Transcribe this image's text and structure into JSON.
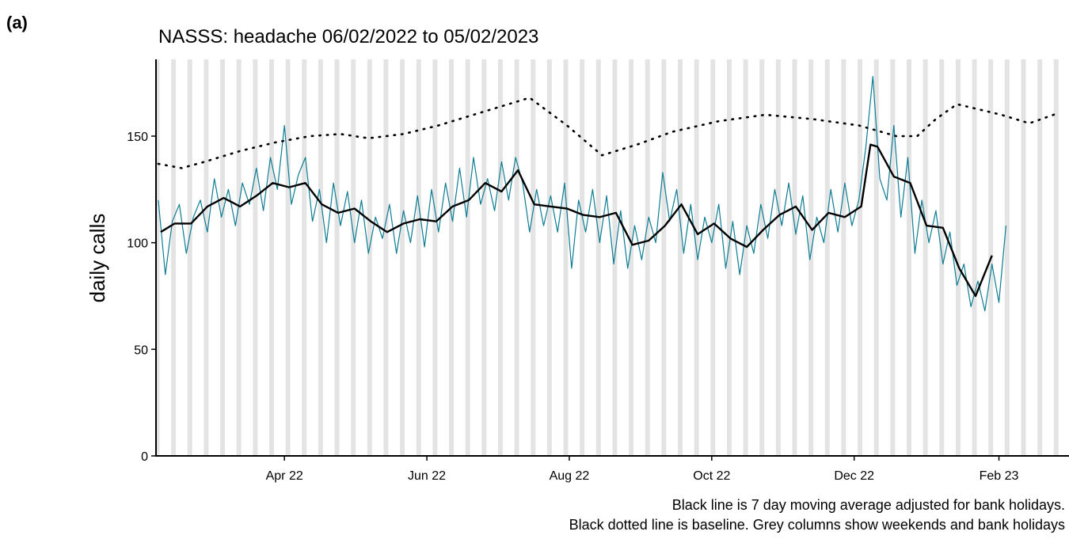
{
  "panel_label": "(a)",
  "chart_data": {
    "type": "line",
    "title": "NASSS: headache 06/02/2022 to 05/02/2023",
    "ylabel": "daily calls",
    "notes": [
      "Black line is 7 day moving average adjusted for bank holidays.",
      "Black dotted line is baseline. Grey columns show weekends and bank holidays"
    ],
    "xlim": [
      -1,
      390
    ],
    "ylim": [
      0,
      186
    ],
    "yticks": [
      0,
      50,
      100,
      150
    ],
    "xticks": [
      {
        "value": 54,
        "label": "Apr 22"
      },
      {
        "value": 115,
        "label": "Jun 22"
      },
      {
        "value": 176,
        "label": "Aug 22"
      },
      {
        "value": 237,
        "label": "Oct 22"
      },
      {
        "value": 298,
        "label": "Dec 22"
      },
      {
        "value": 360,
        "label": "Feb 23"
      }
    ],
    "shading": "weekends",
    "shading_color": "#e3e3e3",
    "series": [
      {
        "color": "#0e7c94",
        "style": "thin",
        "x": [
          0,
          3,
          6,
          9,
          12,
          15,
          18,
          21,
          24,
          27,
          30,
          33,
          36,
          39,
          42,
          45,
          48,
          51,
          54,
          57,
          60,
          63,
          66,
          69,
          72,
          75,
          78,
          81,
          84,
          87,
          90,
          93,
          96,
          99,
          102,
          105,
          108,
          111,
          114,
          117,
          120,
          123,
          126,
          129,
          132,
          135,
          138,
          141,
          144,
          147,
          150,
          153,
          156,
          159,
          162,
          165,
          168,
          171,
          174,
          177,
          180,
          183,
          186,
          189,
          192,
          195,
          198,
          201,
          204,
          207,
          210,
          213,
          216,
          219,
          222,
          225,
          228,
          231,
          234,
          237,
          240,
          243,
          246,
          249,
          252,
          255,
          258,
          261,
          264,
          267,
          270,
          273,
          276,
          279,
          282,
          285,
          288,
          291,
          294,
          297,
          300,
          303,
          306,
          309,
          312,
          315,
          318,
          321,
          324,
          327,
          330,
          333,
          336,
          339,
          342,
          345,
          348,
          351,
          354,
          357,
          360,
          363
        ],
        "values": [
          120,
          85,
          110,
          118,
          95,
          112,
          120,
          105,
          130,
          112,
          125,
          108,
          128,
          118,
          135,
          115,
          140,
          125,
          155,
          118,
          132,
          140,
          110,
          125,
          100,
          128,
          108,
          124,
          100,
          120,
          95,
          112,
          102,
          118,
          95,
          115,
          100,
          122,
          98,
          125,
          105,
          128,
          110,
          135,
          112,
          140,
          118,
          130,
          115,
          138,
          120,
          140,
          128,
          105,
          125,
          108,
          122,
          105,
          128,
          88,
          120,
          105,
          125,
          100,
          122,
          90,
          115,
          88,
          108,
          92,
          112,
          100,
          133,
          110,
          125,
          95,
          118,
          92,
          112,
          100,
          118,
          88,
          110,
          85,
          108,
          95,
          118,
          102,
          125,
          108,
          128,
          104,
          122,
          92,
          112,
          100,
          125,
          105,
          128,
          108,
          120,
          145,
          178,
          130,
          120,
          155,
          112,
          140,
          95,
          120,
          100,
          115,
          90,
          105,
          80,
          90,
          70,
          82,
          68,
          90,
          72,
          108
        ]
      },
      {
        "color": "#000000",
        "style": "thick",
        "x": [
          1,
          7,
          14,
          21,
          28,
          35,
          42,
          49,
          56,
          63,
          70,
          77,
          84,
          91,
          98,
          105,
          112,
          119,
          126,
          133,
          140,
          147,
          154,
          161,
          168,
          175,
          182,
          189,
          196,
          203,
          210,
          217,
          224,
          231,
          238,
          245,
          252,
          259,
          266,
          273,
          280,
          287,
          294,
          301,
          305,
          308,
          315,
          322,
          329,
          336,
          343,
          350,
          357
        ],
        "values": [
          105,
          109,
          109,
          117,
          121,
          117,
          122,
          128,
          126,
          128,
          118,
          114,
          116,
          110,
          105,
          109,
          111,
          110,
          117,
          120,
          128,
          124,
          134,
          118,
          117,
          116,
          113,
          112,
          114,
          99,
          101,
          108,
          118,
          104,
          109,
          102,
          98,
          106,
          113,
          117,
          106,
          114,
          112,
          117,
          146,
          145,
          131,
          128,
          108,
          107,
          88,
          75,
          94
        ]
      },
      {
        "color": "#000000",
        "style": "dotted",
        "x": [
          0,
          10,
          20,
          35,
          50,
          65,
          78,
          90,
          105,
          120,
          135,
          150,
          159,
          175,
          190,
          205,
          220,
          240,
          260,
          280,
          300,
          316,
          325,
          333,
          342,
          361,
          373,
          386
        ],
        "values": [
          137,
          135,
          138,
          143,
          147,
          150,
          151,
          149,
          151,
          155,
          160,
          165,
          168,
          155,
          141,
          146,
          152,
          157,
          160,
          158,
          155,
          150,
          150,
          158,
          165,
          160,
          156,
          161
        ]
      }
    ]
  }
}
